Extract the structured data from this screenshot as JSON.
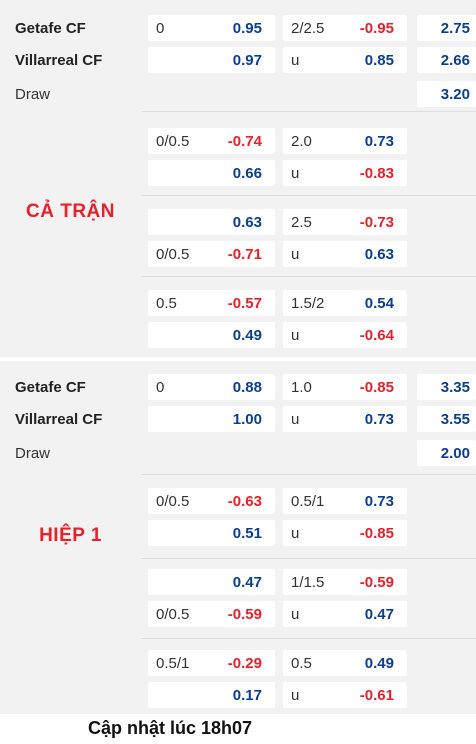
{
  "full_time": {
    "label": "CẢ TRẬN",
    "home_team": "Getafe CF",
    "away_team": "Villarreal CF",
    "draw_label": "Draw",
    "rows": [
      {
        "hcap": "0",
        "odd": "0.95",
        "color": "blue",
        "ou": "2/2.5",
        "ou_odd": "-0.95",
        "ou_color": "red",
        "x": "2.75"
      },
      {
        "hcap": "",
        "odd": "0.97",
        "color": "blue",
        "ou": "u",
        "ou_odd": "0.85",
        "ou_color": "blue",
        "x": "2.66"
      },
      {
        "x": "3.20"
      },
      {
        "hcap": "0/0.5",
        "odd": "-0.74",
        "color": "red",
        "ou": "2.0",
        "ou_odd": "0.73",
        "ou_color": "blue"
      },
      {
        "hcap": "",
        "odd": "0.66",
        "color": "blue",
        "ou": "u",
        "ou_odd": "-0.83",
        "ou_color": "red"
      },
      {
        "hcap": "",
        "odd": "0.63",
        "color": "blue",
        "ou": "2.5",
        "ou_odd": "-0.73",
        "ou_color": "red"
      },
      {
        "hcap": "0/0.5",
        "odd": "-0.71",
        "color": "red",
        "ou": "u",
        "ou_odd": "0.63",
        "ou_color": "blue"
      },
      {
        "hcap": "0.5",
        "odd": "-0.57",
        "color": "red",
        "ou": "1.5/2",
        "ou_odd": "0.54",
        "ou_color": "blue"
      },
      {
        "hcap": "",
        "odd": "0.49",
        "color": "blue",
        "ou": "u",
        "ou_odd": "-0.64",
        "ou_color": "red"
      }
    ]
  },
  "first_half": {
    "label": "HIỆP 1",
    "home_team": "Getafe CF",
    "away_team": "Villarreal CF",
    "draw_label": "Draw",
    "rows": [
      {
        "hcap": "0",
        "odd": "0.88",
        "color": "blue",
        "ou": "1.0",
        "ou_odd": "-0.85",
        "ou_color": "red",
        "x": "3.35"
      },
      {
        "hcap": "",
        "odd": "1.00",
        "color": "blue",
        "ou": "u",
        "ou_odd": "0.73",
        "ou_color": "blue",
        "x": "3.55"
      },
      {
        "x": "2.00"
      },
      {
        "hcap": "0/0.5",
        "odd": "-0.63",
        "color": "red",
        "ou": "0.5/1",
        "ou_odd": "0.73",
        "ou_color": "blue"
      },
      {
        "hcap": "",
        "odd": "0.51",
        "color": "blue",
        "ou": "u",
        "ou_odd": "-0.85",
        "ou_color": "red"
      },
      {
        "hcap": "",
        "odd": "0.47",
        "color": "blue",
        "ou": "1/1.5",
        "ou_odd": "-0.59",
        "ou_color": "red"
      },
      {
        "hcap": "0/0.5",
        "odd": "-0.59",
        "color": "red",
        "ou": "u",
        "ou_odd": "0.47",
        "ou_color": "blue"
      },
      {
        "hcap": "0.5/1",
        "odd": "-0.29",
        "color": "red",
        "ou": "0.5",
        "ou_odd": "0.49",
        "ou_color": "blue"
      },
      {
        "hcap": "",
        "odd": "0.17",
        "color": "blue",
        "ou": "u",
        "ou_odd": "-0.61",
        "ou_color": "red"
      }
    ]
  },
  "footer": {
    "text": "Cập nhật lúc 18h07"
  },
  "colors": {
    "positive": "#0b3d91",
    "negative": "#e8202a",
    "label": "#e8202a"
  }
}
